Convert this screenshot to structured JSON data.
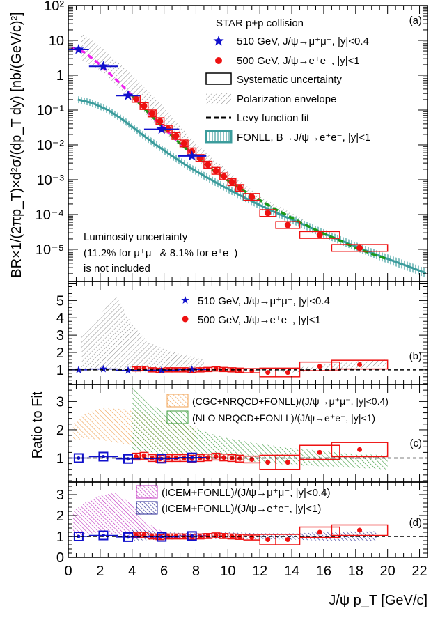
{
  "chart_data": {
    "type": "scatter",
    "x_label": "J/ψ p_T [GeV/c]",
    "x_ticks": [
      "0",
      "2",
      "4",
      "6",
      "8",
      "10",
      "12",
      "14",
      "16",
      "18",
      "20",
      "22"
    ],
    "xlim": [
      0,
      22.5
    ],
    "panels": [
      {
        "id": "a",
        "label": "(a)",
        "ylabel": "BR×1/(2πp_T)×d²σ/(dp_T dy) [nb/(GeV/c)²]",
        "yscale": "log",
        "ylim": [
          1.2e-06,
          100
        ],
        "y_ticks": [
          "10²",
          "10",
          "1",
          "10⁻¹",
          "10⁻²",
          "10⁻³",
          "10⁻⁴",
          "10⁻⁵"
        ],
        "legend_title": "STAR p+p collision",
        "legend": [
          "510 GeV, J/ψ→μ⁺μ⁻, |y|<0.4",
          "500 GeV, J/ψ→e⁺e⁻, |y|<1",
          "Systematic uncertainty",
          "Polarization envelope",
          "Levy function fit",
          "FONLL, B→J/ψ→e⁺e⁻, |y|<1"
        ],
        "note": [
          "Luminosity uncertainty",
          "(11.2% for μ⁺μ⁻ & 8.1% for e⁺e⁻)",
          "is not included"
        ],
        "series_mumu": {
          "x": [
            0.65,
            2.2,
            3.75,
            5.85,
            7.75
          ],
          "y": [
            5.5,
            1.8,
            0.26,
            0.028,
            0.0048
          ],
          "xerr": [
            0.65,
            0.9,
            0.75,
            1.1,
            0.9
          ]
        },
        "series_ee": {
          "x": [
            4.25,
            4.75,
            5.25,
            5.75,
            6.25,
            6.75,
            7.25,
            7.75,
            8.25,
            8.75,
            9.25,
            9.75,
            10.25,
            10.75,
            11.5,
            12.5,
            13.75,
            15.75,
            18.25
          ],
          "y": [
            0.21,
            0.13,
            0.08,
            0.048,
            0.029,
            0.018,
            0.011,
            0.0065,
            0.0042,
            0.0027,
            0.0018,
            0.00125,
            0.00085,
            0.00058,
            0.00032,
            0.00011,
            5e-05,
            2.6e-05,
            1.1e-05
          ],
          "xerr": [
            0.25,
            0.25,
            0.25,
            0.25,
            0.25,
            0.25,
            0.25,
            0.25,
            0.25,
            0.25,
            0.25,
            0.25,
            0.25,
            0.25,
            0.5,
            0.5,
            0.75,
            1.25,
            1.75
          ]
        }
      },
      {
        "id": "b",
        "label": "(b)",
        "ylim": [
          0.15,
          6.1
        ],
        "y_ticks": [
          "1",
          "2",
          "3",
          "4",
          "5"
        ],
        "legend": [
          "510 GeV, J/ψ→μ⁺μ⁻, |y|<0.4",
          "500 GeV, J/ψ→e⁺e⁻, |y|<1"
        ]
      },
      {
        "id": "c",
        "label": "(c)",
        "ylabel": "Ratio to Fit",
        "ylim": [
          0.15,
          3.6
        ],
        "y_ticks": [
          "1",
          "2",
          "3"
        ],
        "legend": [
          "(CGC+NRQCD+FONLL)/(J/ψ→μ⁺μ⁻, |y|<0.4)",
          "(NLO NRQCD+FONLL)/(J/ψ→e⁺e⁻, |y|<1)"
        ]
      },
      {
        "id": "d",
        "label": "(d)",
        "ylim": [
          0,
          3.6
        ],
        "y_ticks": [
          "0",
          "1",
          "2",
          "3"
        ],
        "legend": [
          "(ICEM+FONLL)/(J/ψ→μ⁺μ⁻, |y|<0.4)",
          "(ICEM+FONLL)/(J/ψ→e⁺e⁻, |y|<1)"
        ]
      }
    ],
    "ratio_mumu": {
      "x": [
        0.65,
        2.2,
        3.75,
        5.85,
        7.75
      ],
      "y": [
        1.0,
        1.05,
        0.97,
        0.98,
        1.02
      ]
    },
    "ratio_ee": {
      "x": [
        4.25,
        4.75,
        5.25,
        5.75,
        6.25,
        6.75,
        7.25,
        7.75,
        8.25,
        8.75,
        9.25,
        9.75,
        10.25,
        10.75,
        11.5,
        12.5,
        13.75,
        15.75,
        18.25
      ],
      "y": [
        1.05,
        1.08,
        1.0,
        0.97,
        1.0,
        1.0,
        1.0,
        0.98,
        1.0,
        1.02,
        1.05,
        1.02,
        1.0,
        0.98,
        0.95,
        0.85,
        0.85,
        1.2,
        1.3
      ]
    },
    "colors": {
      "mumu": "#1010cc",
      "ee": "#ee1111",
      "levy": "#1a9a1a",
      "levy_low": "#ee22ee",
      "fonll": "#3b9c9c",
      "cgc": "#f0a050",
      "nlo": "#3a9a3a",
      "icem_mu": "#c030c0",
      "icem_e": "#202090",
      "pol": "#999999"
    }
  }
}
